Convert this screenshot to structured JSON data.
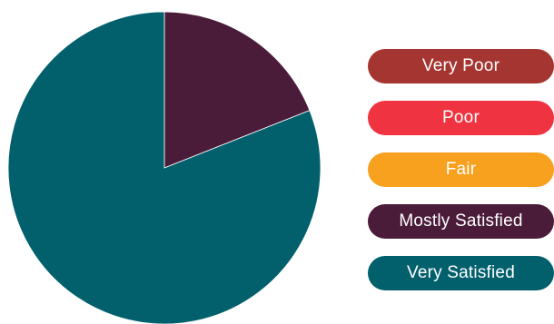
{
  "chart_data": {
    "type": "pie",
    "categories": [
      "Very Poor",
      "Poor",
      "Fair",
      "Mostly Satisfied",
      "Very Satisfied"
    ],
    "values": [
      0,
      0,
      0,
      19,
      81
    ],
    "colors": [
      "#a53531",
      "#ef3341",
      "#f7a11f",
      "#4b1c3a",
      "#02606d"
    ],
    "legend": {
      "position": "right",
      "items": [
        {
          "label": "Very Poor",
          "color": "#a53531",
          "text_color": "#ffffff"
        },
        {
          "label": "Poor",
          "color": "#ef3341",
          "text_color": "#ffffff"
        },
        {
          "label": "Fair",
          "color": "#f7a11f",
          "text_color": "#ffffff"
        },
        {
          "label": "Mostly Satisfied",
          "color": "#4b1c3a",
          "text_color": "#ffffff"
        },
        {
          "label": "Very Satisfied",
          "color": "#02606d",
          "text_color": "#ffffff"
        }
      ]
    }
  }
}
